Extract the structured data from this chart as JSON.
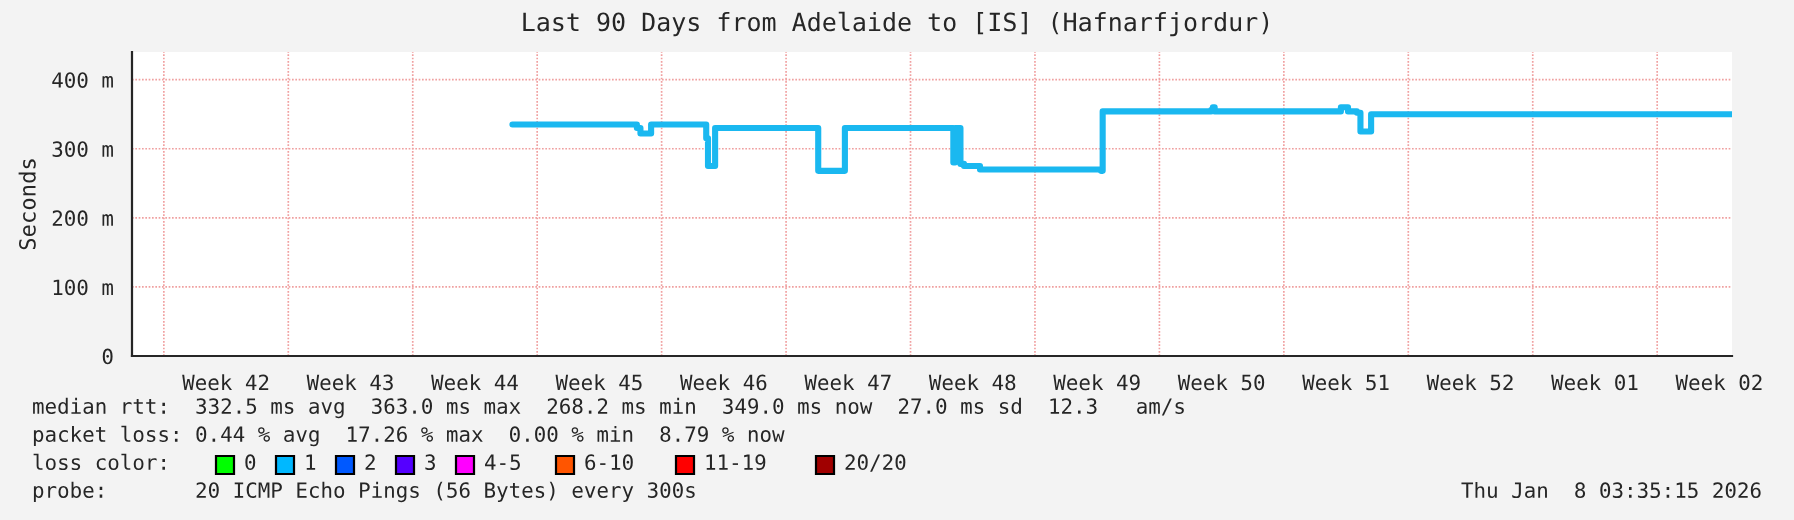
{
  "chart_data": {
    "type": "step",
    "title": "Last 90 Days from Adelaide to [IS] (Hafnarfjordur)",
    "ylabel": "Seconds",
    "xlim": [
      "2025-10-11T05:00",
      "2026-01-09T05:00"
    ],
    "ylim": [
      0,
      440
    ],
    "xticks": [
      {
        "value": "2025-10-13",
        "label": null
      },
      {
        "value": "2025-10-16T12:00",
        "label": "Week 42"
      },
      {
        "value": "2025-10-20",
        "label": null
      },
      {
        "value": "2025-10-23T12:00",
        "label": "Week 43"
      },
      {
        "value": "2025-10-27",
        "label": null
      },
      {
        "value": "2025-10-30T12:00",
        "label": "Week 44"
      },
      {
        "value": "2025-11-03",
        "label": null
      },
      {
        "value": "2025-11-06T12:00",
        "label": "Week 45"
      },
      {
        "value": "2025-11-10",
        "label": null
      },
      {
        "value": "2025-11-13T12:00",
        "label": "Week 46"
      },
      {
        "value": "2025-11-17",
        "label": null
      },
      {
        "value": "2025-11-20T12:00",
        "label": "Week 47"
      },
      {
        "value": "2025-11-24",
        "label": null
      },
      {
        "value": "2025-11-27T12:00",
        "label": "Week 48"
      },
      {
        "value": "2025-12-01",
        "label": null
      },
      {
        "value": "2025-12-04T12:00",
        "label": "Week 49"
      },
      {
        "value": "2025-12-08",
        "label": null
      },
      {
        "value": "2025-12-11T12:00",
        "label": "Week 50"
      },
      {
        "value": "2025-12-15",
        "label": null
      },
      {
        "value": "2025-12-18T12:00",
        "label": "Week 51"
      },
      {
        "value": "2025-12-22",
        "label": null
      },
      {
        "value": "2025-12-25T12:00",
        "label": "Week 52"
      },
      {
        "value": "2025-12-29",
        "label": null
      },
      {
        "value": "2026-01-01T12:00",
        "label": "Week 01"
      },
      {
        "value": "2026-01-05",
        "label": null
      },
      {
        "value": "2026-01-08T12:00",
        "label": "Week 02"
      }
    ],
    "yticks": [
      {
        "value": 0,
        "label": "0"
      },
      {
        "value": 100,
        "label": "100 m"
      },
      {
        "value": 200,
        "label": "200 m"
      },
      {
        "value": 300,
        "label": "300 m"
      },
      {
        "value": 400,
        "label": "400 m"
      }
    ],
    "grid": true,
    "series": [
      {
        "color": "#1ab8f0",
        "x": [
          "2025-11-01T14:36",
          "2025-11-07T02:36",
          "2025-11-08T14:36",
          "2025-11-08T19:24",
          "2025-11-09T02:36",
          "2025-11-09T09:48",
          "2025-11-12T09:48",
          "2025-11-12T12:12",
          "2025-11-12T14:36",
          "2025-11-12T21:48",
          "2025-11-13T00:12",
          "2025-11-18T17:00",
          "2025-11-18T19:24",
          "2025-11-20T05:00",
          "2025-11-20T07:24",
          "2025-11-26T07:24",
          "2025-11-26T09:48",
          "2025-11-26T12:12",
          "2025-11-26T17:00",
          "2025-11-26T19:24",
          "2025-11-27T00:12",
          "2025-11-27T21:48",
          "2025-12-04T17:00",
          "2025-12-04T19:24",
          "2025-12-10T21:48",
          "2025-12-11T00:12",
          "2025-12-11T02:36",
          "2025-12-17T21:48",
          "2025-12-18T05:00",
          "2025-12-18T14:36",
          "2025-12-19T02:36",
          "2025-12-19T07:24",
          "2025-12-19T19:24",
          "2025-12-19T21:48",
          "2026-01-09T05:00"
        ],
        "values": [
          335,
          335,
          330,
          322,
          322,
          335,
          335,
          315,
          275,
          275,
          330,
          330,
          268,
          268,
          330,
          330,
          280,
          330,
          330,
          278,
          275,
          270,
          268,
          354,
          356,
          360,
          354,
          354,
          360,
          354,
          352,
          325,
          325,
          350,
          350
        ]
      }
    ],
    "annotations": [
      "median rtt:  332.5 ms avg  363.0 ms max  268.2 ms min  349.0 ms now  27.0 ms sd  12.3   am/s",
      "packet loss: 0.44 % avg  17.26 % max  0.00 % min  8.79 % now",
      "loss color:",
      "0",
      "1",
      "2",
      "3",
      "4-5",
      "6-10",
      "11-19",
      "20/20",
      "probe:       20 ICMP Echo Pings (56 Bytes) every 300s",
      "Thu Jan  8 03:35:15 2026"
    ]
  }
}
